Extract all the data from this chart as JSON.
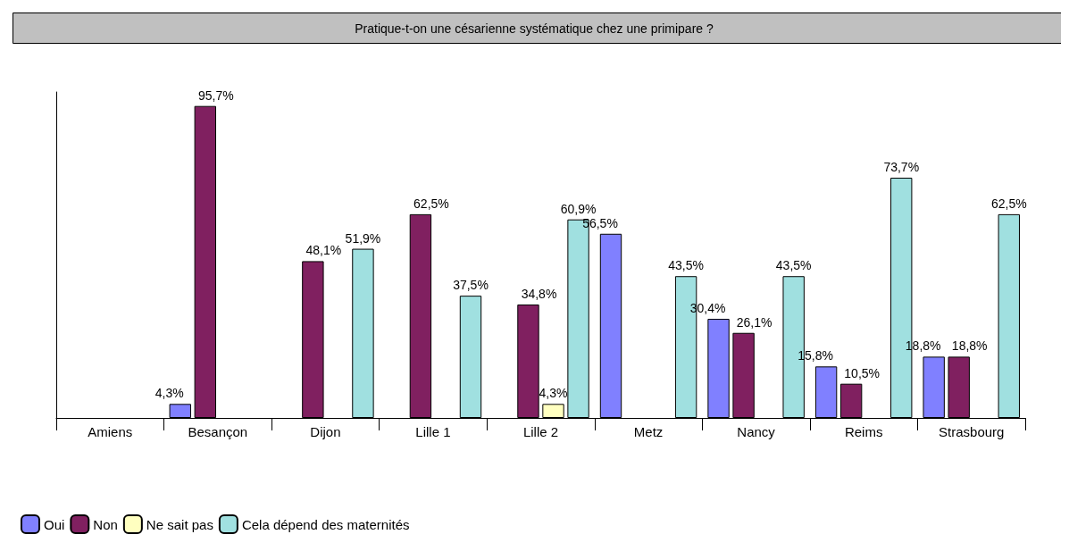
{
  "chart_data": {
    "type": "bar",
    "title": "Pratique-t-on une césarienne systématique chez une primipare ?",
    "categories": [
      "Amiens",
      "Besançon",
      "Dijon",
      "Lille 1",
      "Lille 2",
      "Metz",
      "Nancy",
      "Reims",
      "Strasbourg"
    ],
    "series": [
      {
        "name": "Oui",
        "color": "#8080ff",
        "values": [
          null,
          4.3,
          null,
          null,
          null,
          56.5,
          30.4,
          15.8,
          18.8
        ],
        "value_labels": [
          null,
          "4,3%",
          null,
          null,
          null,
          "56,5%",
          "30,4%",
          "15,8%",
          "18,8%"
        ]
      },
      {
        "name": "Non",
        "color": "#802060",
        "values": [
          null,
          95.7,
          48.1,
          62.5,
          34.8,
          null,
          26.1,
          10.5,
          18.8
        ],
        "value_labels": [
          null,
          "95,7%",
          "48,1%",
          "62,5%",
          "34,8%",
          null,
          "26,1%",
          "10,5%",
          "18,8%"
        ]
      },
      {
        "name": "Ne sait pas",
        "color": "#ffffc0",
        "values": [
          null,
          null,
          null,
          null,
          4.3,
          null,
          null,
          null,
          null
        ],
        "value_labels": [
          null,
          null,
          null,
          null,
          "4,3%",
          null,
          null,
          null,
          null
        ]
      },
      {
        "name": "Cela dépend des maternités",
        "color": "#a0e0e0",
        "values": [
          null,
          null,
          51.9,
          37.5,
          60.9,
          43.5,
          43.5,
          73.7,
          62.5
        ],
        "value_labels": [
          null,
          null,
          "51,9%",
          "37,5%",
          "60,9%",
          "43,5%",
          "43,5%",
          "73,7%",
          "62,5%"
        ]
      }
    ],
    "tick_labels": "x",
    "grid": false,
    "legend": "bottom"
  }
}
